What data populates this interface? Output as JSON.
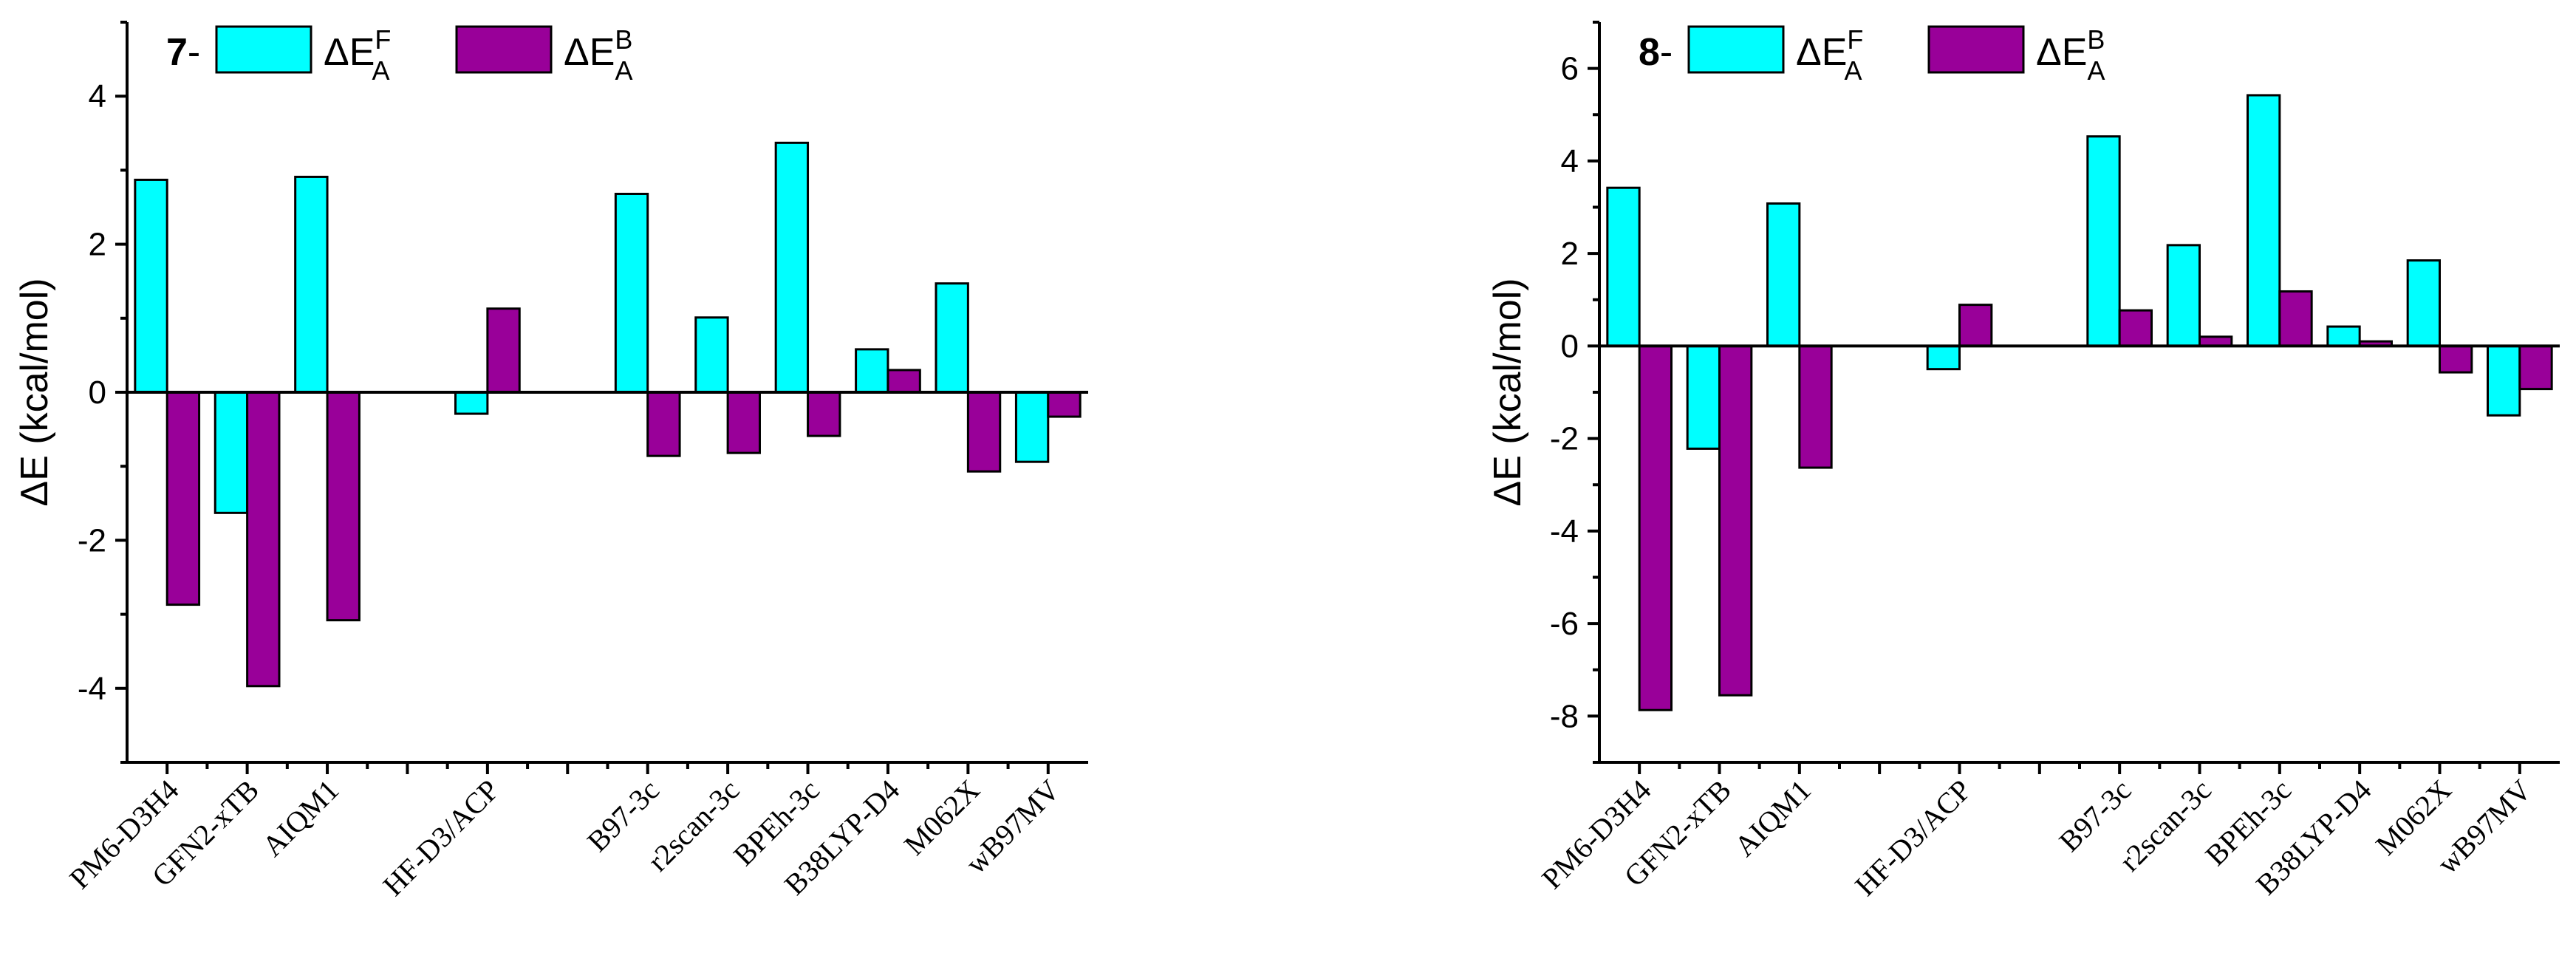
{
  "figure": {
    "colors": {
      "forward": "#00FFFF",
      "backward": "#990099",
      "axis": "#000000"
    },
    "legend_symbol": "ΔE",
    "legend_entries": [
      {
        "sup": "F",
        "sub": "A"
      },
      {
        "sup": "B",
        "sub": "A"
      }
    ]
  },
  "chart_data": [
    {
      "type": "bar",
      "panel_label": "7",
      "panel_suffix": "-",
      "title": "",
      "xlabel": "",
      "ylabel": "ΔE (kcal/mol)",
      "ylim": [
        -5,
        5
      ],
      "yticks": [
        -4,
        -2,
        0,
        2,
        4
      ],
      "ytick_labels": [
        "-4",
        "-2",
        "0",
        "2",
        "4"
      ],
      "legend_position": "top-left",
      "categories": [
        "PM6-D3H4",
        "GFN2-xTB",
        "AIQM1",
        "",
        "HF-D3/ACP",
        "",
        "B97-3c",
        "r2scan-3c",
        "BPEh-3c",
        "B38LYP-D4",
        "M062X",
        "wB97MV"
      ],
      "series": [
        {
          "name": "ΔE^F_A",
          "values": [
            2.87,
            -1.63,
            2.91,
            null,
            -0.29,
            null,
            2.68,
            1.01,
            3.37,
            0.58,
            1.47,
            -0.94
          ]
        },
        {
          "name": "ΔE^B_A",
          "values": [
            -2.87,
            -3.97,
            -3.08,
            null,
            1.13,
            null,
            -0.86,
            -0.82,
            -0.59,
            0.3,
            -1.07,
            -0.33
          ]
        }
      ]
    },
    {
      "type": "bar",
      "panel_label": "8",
      "panel_suffix": "-",
      "title": "",
      "xlabel": "",
      "ylabel": "ΔE (kcal/mol)",
      "ylim": [
        -9,
        7
      ],
      "yticks": [
        -8,
        -6,
        -4,
        -2,
        0,
        2,
        4,
        6
      ],
      "ytick_labels": [
        "-8",
        "-6",
        "-4",
        "-2",
        "0",
        "2",
        "4",
        "6"
      ],
      "legend_position": "top-left",
      "categories": [
        "PM6-D3H4",
        "GFN2-xTB",
        "AIQM1",
        "",
        "HF-D3/ACP",
        "",
        "B97-3c",
        "r2scan-3c",
        "BPEh-3c",
        "B38LYP-D4",
        "M062X",
        "wB97MV"
      ],
      "series": [
        {
          "name": "ΔE^F_A",
          "values": [
            3.42,
            -2.22,
            3.08,
            null,
            -0.5,
            null,
            4.53,
            2.18,
            5.42,
            0.42,
            1.85,
            -1.5
          ]
        },
        {
          "name": "ΔE^B_A",
          "values": [
            -7.87,
            -7.55,
            -2.63,
            null,
            0.89,
            null,
            0.77,
            0.2,
            1.18,
            0.1,
            -0.57,
            -0.93
          ]
        }
      ]
    }
  ]
}
